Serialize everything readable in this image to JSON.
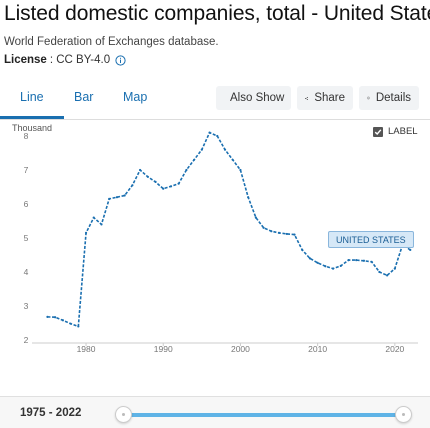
{
  "header": {
    "title": "Listed domestic companies, total - United States",
    "source": "World Federation of Exchanges database.",
    "license_label": "License",
    "license_value": ": CC BY-4.0"
  },
  "tabs": [
    {
      "label": "Line",
      "active": true
    },
    {
      "label": "Bar",
      "active": false
    },
    {
      "label": "Map",
      "active": false
    }
  ],
  "toolbar": {
    "also_show": "Also Show",
    "share": "Share",
    "details": "Details"
  },
  "label_toggle": {
    "label": "LABEL",
    "checked": true
  },
  "range": {
    "label": "1975 - 2022"
  },
  "colors": {
    "series": "#1a6fb0",
    "accent": "#1a6fb0",
    "slider": "#5fb3e6"
  },
  "chart_data": {
    "type": "line",
    "title": "",
    "xlabel": "",
    "ylabel": "Thousand",
    "xlim": [
      1973,
      2023
    ],
    "ylim": [
      2,
      8
    ],
    "x_ticks": [
      1980,
      1990,
      2000,
      2010,
      2020
    ],
    "y_ticks": [
      2,
      3,
      4,
      5,
      6,
      7,
      8
    ],
    "grid": false,
    "series": [
      {
        "name": "UNITED STATES",
        "x": [
          1975,
          1976,
          1977,
          1978,
          1979,
          1980,
          1981,
          1982,
          1983,
          1984,
          1985,
          1986,
          1987,
          1988,
          1989,
          1990,
          1991,
          1992,
          1993,
          1994,
          1995,
          1996,
          1997,
          1998,
          1999,
          2000,
          2001,
          2002,
          2003,
          2004,
          2005,
          2006,
          2007,
          2008,
          2009,
          2010,
          2011,
          2012,
          2013,
          2014,
          2015,
          2016,
          2017,
          2018,
          2019,
          2020,
          2021,
          2022
        ],
        "y": [
          2.68,
          2.67,
          2.58,
          2.48,
          2.4,
          5.15,
          5.6,
          5.4,
          6.15,
          6.2,
          6.25,
          6.55,
          7.0,
          6.8,
          6.65,
          6.45,
          6.52,
          6.6,
          7.0,
          7.3,
          7.6,
          8.1,
          8.0,
          7.6,
          7.3,
          7.0,
          6.2,
          5.6,
          5.3,
          5.2,
          5.15,
          5.12,
          5.1,
          4.65,
          4.4,
          4.27,
          4.17,
          4.1,
          4.18,
          4.35,
          4.35,
          4.33,
          4.3,
          4.0,
          3.9,
          4.1,
          4.8,
          4.65
        ]
      }
    ]
  }
}
